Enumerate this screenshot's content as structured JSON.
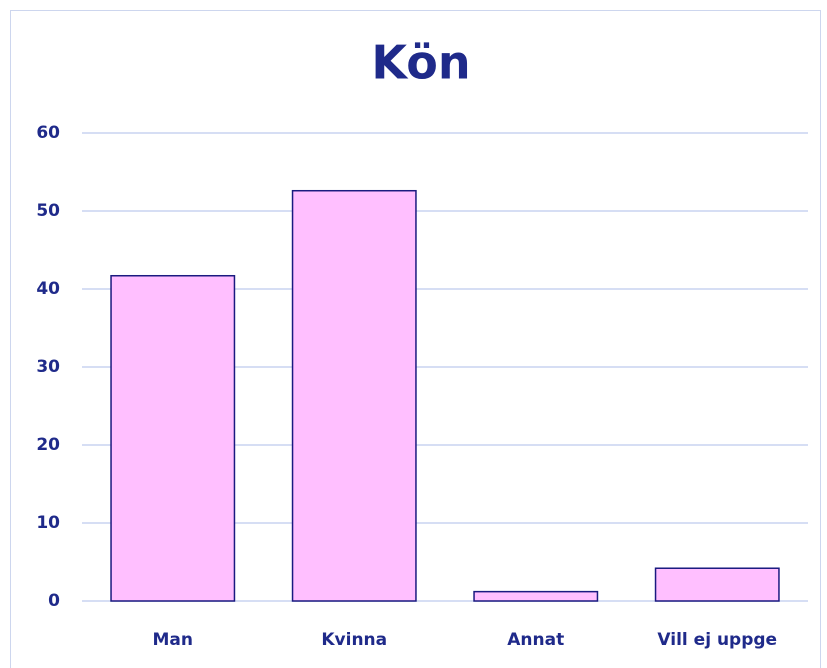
{
  "chart_data": {
    "type": "bar",
    "title": "Kön",
    "categories": [
      "Man",
      "Kvinna",
      "Annat",
      "Vill ej uppge"
    ],
    "values": [
      41.7,
      52.6,
      1.2,
      4.2
    ],
    "color": "#ffbfff",
    "edge_color": "#1a1a80",
    "ylim": [
      0,
      60
    ],
    "yticks": [
      0,
      10,
      20,
      30,
      40,
      50,
      60
    ],
    "grid": true
  }
}
